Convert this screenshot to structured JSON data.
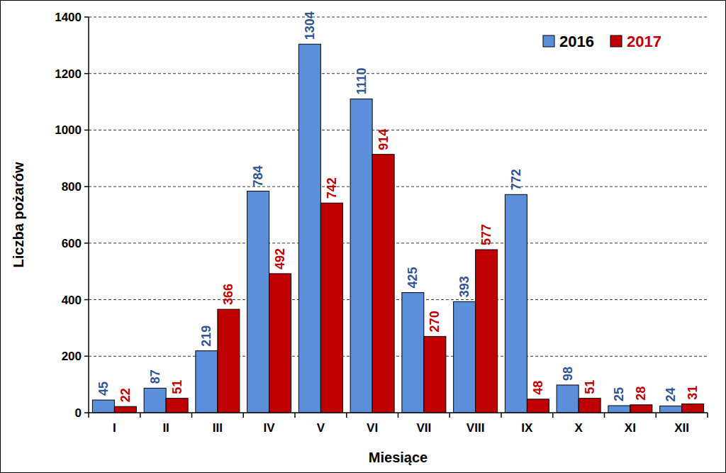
{
  "chart_data": {
    "type": "bar",
    "x_label": "Miesiące",
    "y_label": "Liczba pożarów",
    "categories": [
      "I",
      "II",
      "III",
      "IV",
      "V",
      "VI",
      "VII",
      "VIII",
      "IX",
      "X",
      "XI",
      "XII"
    ],
    "series": [
      {
        "name": "2016",
        "color": "#5b8fd9",
        "values": [
          45,
          87,
          219,
          784,
          1304,
          1110,
          425,
          393,
          772,
          98,
          25,
          24
        ]
      },
      {
        "name": "2017",
        "color": "#c00000",
        "values": [
          22,
          51,
          366,
          492,
          742,
          914,
          270,
          577,
          48,
          51,
          28,
          31
        ]
      }
    ],
    "ylim": [
      0,
      1400
    ],
    "yticks": [
      0,
      200,
      400,
      600,
      800,
      1000,
      1200,
      1400
    ],
    "grid": true,
    "legend": "upper right",
    "data_labels": true
  }
}
